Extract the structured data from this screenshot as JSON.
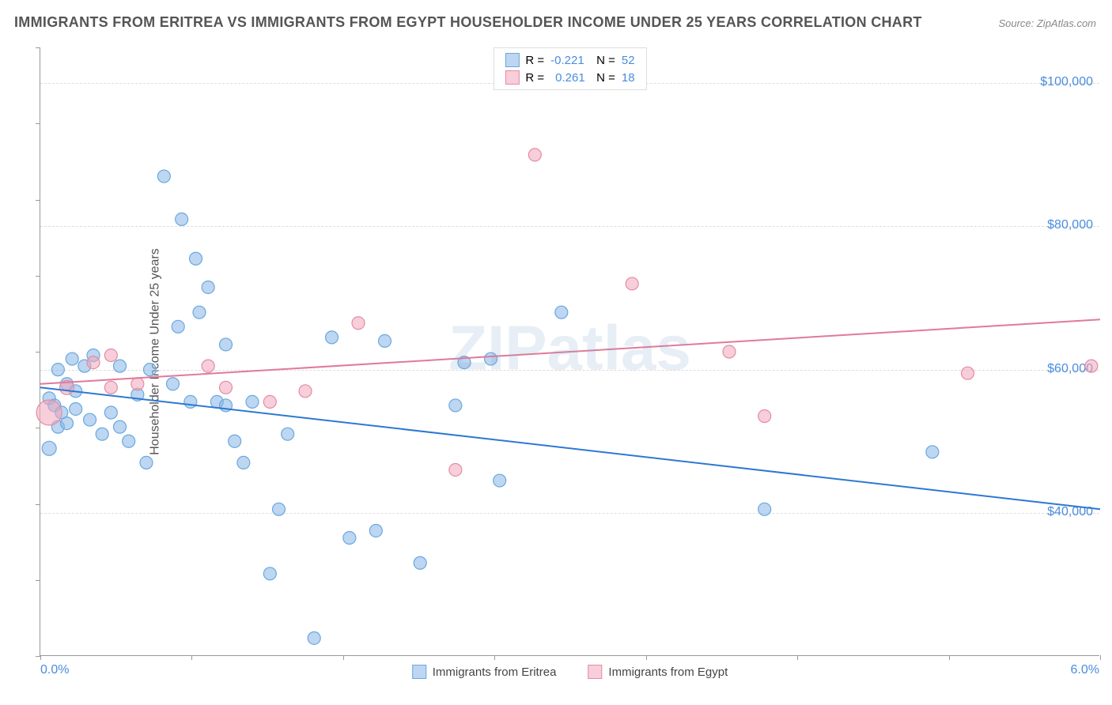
{
  "title": "IMMIGRANTS FROM ERITREA VS IMMIGRANTS FROM EGYPT HOUSEHOLDER INCOME UNDER 25 YEARS CORRELATION CHART",
  "source": "Source: ZipAtlas.com",
  "watermark": "ZIPatlas",
  "chart": {
    "type": "scatter",
    "background_color": "#ffffff",
    "grid_color": "#dddddd",
    "axis_color": "#999999",
    "tick_label_color": "#4a8ce0",
    "axis_label_color": "#555555",
    "y_axis_title": "Householder Income Under 25 years",
    "y_labels": [
      "$100,000",
      "$80,000",
      "$60,000",
      "$40,000"
    ],
    "y_values": [
      100000,
      80000,
      60000,
      40000
    ],
    "y_min": 20000,
    "y_max": 105000,
    "x_min": 0.0,
    "x_max": 6.0,
    "x_labels": [
      "0.0%",
      "6.0%"
    ],
    "x_positions": [
      0.0,
      6.0
    ],
    "series": [
      {
        "name": "Immigrants from Eritrea",
        "key": "eritrea",
        "fill_color": "rgba(135,180,230,0.55)",
        "stroke_color": "#6aa8de",
        "line_color": "#2e78d2",
        "R": "-0.221",
        "N": "52",
        "trend": {
          "x1": 0.0,
          "y1": 57500,
          "x2": 6.0,
          "y2": 40500
        },
        "points": [
          {
            "x": 0.05,
            "y": 49000,
            "r": 9
          },
          {
            "x": 0.05,
            "y": 56000,
            "r": 8
          },
          {
            "x": 0.08,
            "y": 55000,
            "r": 8
          },
          {
            "x": 0.1,
            "y": 52000,
            "r": 8
          },
          {
            "x": 0.1,
            "y": 60000,
            "r": 8
          },
          {
            "x": 0.12,
            "y": 54000,
            "r": 8
          },
          {
            "x": 0.15,
            "y": 58000,
            "r": 8
          },
          {
            "x": 0.15,
            "y": 52500,
            "r": 8
          },
          {
            "x": 0.18,
            "y": 61500,
            "r": 8
          },
          {
            "x": 0.2,
            "y": 54500,
            "r": 8
          },
          {
            "x": 0.2,
            "y": 57000,
            "r": 8
          },
          {
            "x": 0.25,
            "y": 60500,
            "r": 8
          },
          {
            "x": 0.28,
            "y": 53000,
            "r": 8
          },
          {
            "x": 0.3,
            "y": 62000,
            "r": 8
          },
          {
            "x": 0.35,
            "y": 51000,
            "r": 8
          },
          {
            "x": 0.4,
            "y": 54000,
            "r": 8
          },
          {
            "x": 0.45,
            "y": 60500,
            "r": 8
          },
          {
            "x": 0.45,
            "y": 52000,
            "r": 8
          },
          {
            "x": 0.5,
            "y": 50000,
            "r": 8
          },
          {
            "x": 0.55,
            "y": 56500,
            "r": 8
          },
          {
            "x": 0.6,
            "y": 47000,
            "r": 8
          },
          {
            "x": 0.62,
            "y": 60000,
            "r": 8
          },
          {
            "x": 0.7,
            "y": 87000,
            "r": 8
          },
          {
            "x": 0.75,
            "y": 58000,
            "r": 8
          },
          {
            "x": 0.78,
            "y": 66000,
            "r": 8
          },
          {
            "x": 0.8,
            "y": 81000,
            "r": 8
          },
          {
            "x": 0.85,
            "y": 55500,
            "r": 8
          },
          {
            "x": 0.88,
            "y": 75500,
            "r": 8
          },
          {
            "x": 0.9,
            "y": 68000,
            "r": 8
          },
          {
            "x": 0.95,
            "y": 71500,
            "r": 8
          },
          {
            "x": 1.0,
            "y": 55500,
            "r": 8
          },
          {
            "x": 1.05,
            "y": 63500,
            "r": 8
          },
          {
            "x": 1.05,
            "y": 55000,
            "r": 8
          },
          {
            "x": 1.1,
            "y": 50000,
            "r": 8
          },
          {
            "x": 1.15,
            "y": 47000,
            "r": 8
          },
          {
            "x": 1.2,
            "y": 55500,
            "r": 8
          },
          {
            "x": 1.3,
            "y": 31500,
            "r": 8
          },
          {
            "x": 1.35,
            "y": 40500,
            "r": 8
          },
          {
            "x": 1.4,
            "y": 51000,
            "r": 8
          },
          {
            "x": 1.55,
            "y": 22500,
            "r": 8
          },
          {
            "x": 1.65,
            "y": 64500,
            "r": 8
          },
          {
            "x": 1.75,
            "y": 36500,
            "r": 8
          },
          {
            "x": 1.9,
            "y": 37500,
            "r": 8
          },
          {
            "x": 1.95,
            "y": 64000,
            "r": 8
          },
          {
            "x": 2.15,
            "y": 33000,
            "r": 8
          },
          {
            "x": 2.4,
            "y": 61000,
            "r": 8
          },
          {
            "x": 2.55,
            "y": 61500,
            "r": 8
          },
          {
            "x": 2.6,
            "y": 44500,
            "r": 8
          },
          {
            "x": 2.95,
            "y": 68000,
            "r": 8
          },
          {
            "x": 4.1,
            "y": 40500,
            "r": 8
          },
          {
            "x": 5.05,
            "y": 48500,
            "r": 8
          },
          {
            "x": 2.35,
            "y": 55000,
            "r": 8
          }
        ]
      },
      {
        "name": "Immigrants from Egypt",
        "key": "egypt",
        "fill_color": "rgba(240,165,185,0.55)",
        "stroke_color": "#e38ca5",
        "line_color": "#e07a9a",
        "R": "0.261",
        "N": "18",
        "trend": {
          "x1": 0.0,
          "y1": 58000,
          "x2": 6.0,
          "y2": 67000
        },
        "points": [
          {
            "x": 0.05,
            "y": 54000,
            "r": 16
          },
          {
            "x": 0.15,
            "y": 57500,
            "r": 9
          },
          {
            "x": 0.3,
            "y": 61000,
            "r": 8
          },
          {
            "x": 0.4,
            "y": 62000,
            "r": 8
          },
          {
            "x": 0.4,
            "y": 57500,
            "r": 8
          },
          {
            "x": 0.55,
            "y": 58000,
            "r": 8
          },
          {
            "x": 0.95,
            "y": 60500,
            "r": 8
          },
          {
            "x": 1.05,
            "y": 57500,
            "r": 8
          },
          {
            "x": 1.3,
            "y": 55500,
            "r": 8
          },
          {
            "x": 1.5,
            "y": 57000,
            "r": 8
          },
          {
            "x": 1.8,
            "y": 66500,
            "r": 8
          },
          {
            "x": 2.35,
            "y": 46000,
            "r": 8
          },
          {
            "x": 2.8,
            "y": 90000,
            "r": 8
          },
          {
            "x": 3.35,
            "y": 72000,
            "r": 8
          },
          {
            "x": 3.9,
            "y": 62500,
            "r": 8
          },
          {
            "x": 4.1,
            "y": 53500,
            "r": 8
          },
          {
            "x": 5.25,
            "y": 59500,
            "r": 8
          },
          {
            "x": 5.95,
            "y": 60500,
            "r": 8
          }
        ]
      }
    ]
  },
  "legend_top": {
    "labels": {
      "R_prefix": "R =",
      "N_prefix": "N ="
    },
    "text_color": "#555555",
    "value_color": "#4a8ce0"
  },
  "legend_bottom": {
    "text_color": "#444444"
  }
}
